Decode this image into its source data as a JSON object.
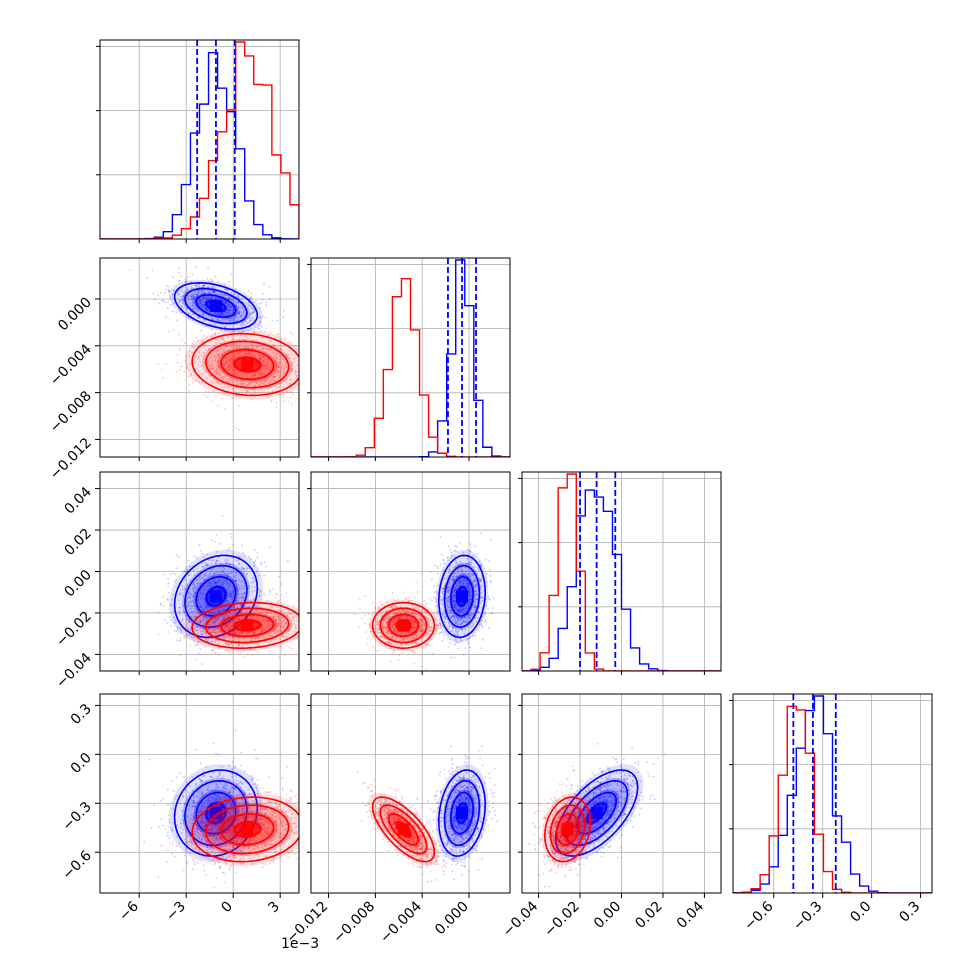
{
  "chart_data": {
    "type": "corner",
    "parameters": 4,
    "colors": {
      "series_a": "#0000ff",
      "series_b": "#ff0000"
    },
    "grid": true,
    "axes": [
      {
        "index": 0,
        "range": [
          -8.5,
          4.2
        ],
        "scale_label": "1e−3",
        "ticks": [
          -6,
          -3,
          0,
          3
        ],
        "tick_labels": [
          "−6",
          "−3",
          "0",
          "3"
        ]
      },
      {
        "index": 1,
        "range": [
          -0.0135,
          0.0035
        ],
        "scale_label": "",
        "ticks": [
          -0.012,
          -0.008,
          -0.004,
          0.0
        ],
        "tick_labels": [
          "−0.012",
          "−0.008",
          "−0.004",
          "0.000"
        ]
      },
      {
        "index": 2,
        "range": [
          -0.048,
          0.048
        ],
        "scale_label": "",
        "ticks": [
          -0.04,
          -0.02,
          0.0,
          0.02,
          0.04
        ],
        "tick_labels": [
          "−0.04",
          "−0.02",
          "0.00",
          "0.02",
          "0.04"
        ]
      },
      {
        "index": 3,
        "range": [
          -0.85,
          0.37
        ],
        "scale_label": "",
        "ticks": [
          -0.6,
          -0.3,
          0.0,
          0.3
        ],
        "tick_labels": [
          "−0.6",
          "−0.3",
          "0.0",
          "0.3"
        ]
      }
    ],
    "series": [
      {
        "color": "#0000ff",
        "mean": [
          -1.1,
          -0.0006,
          -0.012,
          -0.36
        ],
        "sd": [
          1.2,
          0.0009,
          0.009,
          0.12
        ],
        "corr": [
          [
            1,
            -0.4,
            0.2,
            0.1
          ],
          [
            -0.4,
            1,
            0.1,
            0.2
          ],
          [
            0.2,
            0.1,
            1,
            0.6
          ],
          [
            0.1,
            0.2,
            0.6,
            1
          ]
        ],
        "quantiles": [
          [
            -2.3,
            -1.1,
            0.1
          ],
          [
            -0.0018,
            -0.0006,
            0.0006
          ],
          [
            -0.02,
            -0.012,
            -0.003
          ],
          [
            -0.48,
            -0.36,
            -0.22
          ]
        ]
      },
      {
        "color": "#ff0000",
        "mean": [
          0.9,
          -0.0056,
          -0.026,
          -0.46
        ],
        "sd": [
          1.6,
          0.0012,
          0.005,
          0.09
        ],
        "corr": [
          [
            1,
            -0.1,
            0.1,
            0.1
          ],
          [
            -0.1,
            1,
            0.0,
            -0.7
          ],
          [
            0.1,
            0.0,
            1,
            0.2
          ],
          [
            0.1,
            -0.7,
            0.2,
            1
          ]
        ]
      }
    ]
  }
}
